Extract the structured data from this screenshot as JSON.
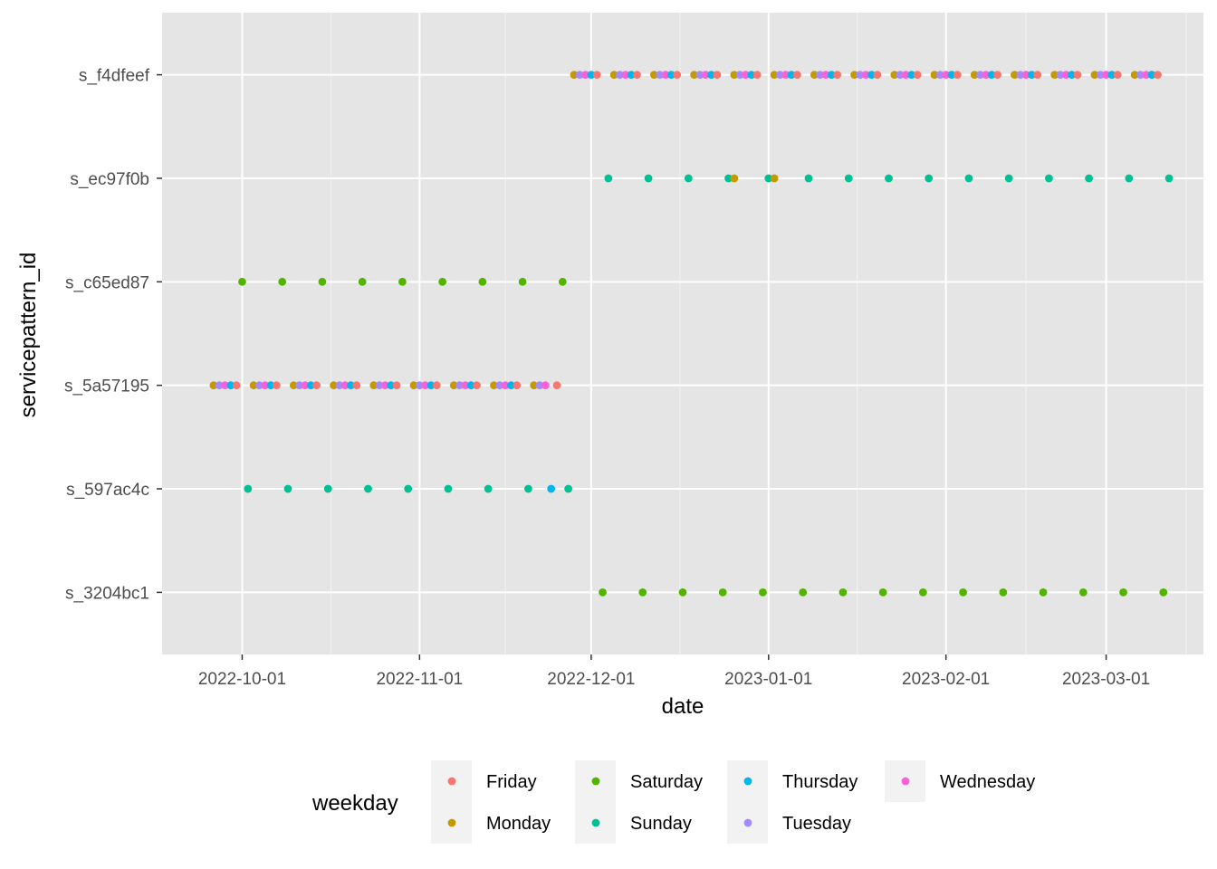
{
  "chart_data": {
    "type": "scatter",
    "title": "",
    "xlabel": "date",
    "ylabel": "servicepattern_id",
    "xlim": [
      "2022-09-17",
      "2023-03-18"
    ],
    "x_ticks": [
      "2022-10-01",
      "2022-11-01",
      "2022-12-01",
      "2023-01-01",
      "2023-02-01",
      "2023-03-01"
    ],
    "categories": [
      "s_3204bc1",
      "s_597ac4c",
      "s_5a57195",
      "s_c65ed87",
      "s_ec97f0b",
      "s_f4dfeef"
    ],
    "grid": true,
    "legend": {
      "title": "weekday",
      "position": "bottom",
      "entries": [
        "Friday",
        "Monday",
        "Saturday",
        "Sunday",
        "Thursday",
        "Tuesday",
        "Wednesday"
      ]
    },
    "colors": {
      "Friday": "#F8766D",
      "Monday": "#C49A00",
      "Saturday": "#53B400",
      "Sunday": "#00C094",
      "Thursday": "#00B6EB",
      "Tuesday": "#A58AFF",
      "Wednesday": "#FB61D7"
    },
    "panel_bg": "#E5E5E5",
    "ranges": [
      {
        "id": "s_f4dfeef",
        "start": "2022-11-28",
        "end": "2023-03-10",
        "weekdays": [
          "Monday",
          "Tuesday",
          "Wednesday",
          "Thursday",
          "Friday"
        ]
      },
      {
        "id": "s_ec97f0b",
        "start": "2022-12-04",
        "end": "2023-03-12",
        "weekdays": [
          "Sunday"
        ]
      },
      {
        "id": "s_c65ed87",
        "start": "2022-10-01",
        "end": "2022-11-26",
        "weekdays": [
          "Saturday"
        ]
      },
      {
        "id": "s_5a57195",
        "start": "2022-09-26",
        "end": "2022-11-25",
        "weekdays": [
          "Monday",
          "Tuesday",
          "Wednesday",
          "Thursday",
          "Friday"
        ],
        "exclude": [
          "2022-11-24"
        ]
      },
      {
        "id": "s_597ac4c",
        "start": "2022-10-02",
        "end": "2022-11-27",
        "weekdays": [
          "Sunday"
        ]
      },
      {
        "id": "s_3204bc1",
        "start": "2022-12-03",
        "end": "2023-03-11",
        "weekdays": [
          "Saturday"
        ]
      }
    ],
    "extra_points": [
      {
        "id": "s_ec97f0b",
        "date": "2022-12-26",
        "weekday": "Monday"
      },
      {
        "id": "s_ec97f0b",
        "date": "2023-01-02",
        "weekday": "Monday"
      },
      {
        "id": "s_597ac4c",
        "date": "2022-11-24",
        "weekday": "Thursday"
      }
    ]
  }
}
